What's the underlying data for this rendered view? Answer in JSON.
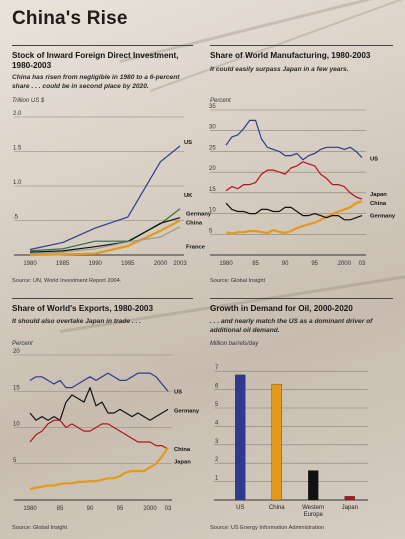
{
  "page_title": "China's Rise",
  "colors": {
    "us": "#2f3a8f",
    "japan": "#b3141d",
    "china": "#e39a1c",
    "germany": "#111111",
    "uk": "#2c6b3c",
    "france": "#9a9a9a"
  },
  "chart_data": [
    {
      "type": "line",
      "title": "Stock of Inward Foreign Direct Investment, 1980-2003",
      "subtitle": "China has risen from negligible in 1980 to a 6-percent share . . . could be in second place by 2020.",
      "unit": "Trillion US $",
      "source": "Source: UN, World Investment Report 2004.",
      "x": [
        1980,
        1985,
        1990,
        1995,
        2000,
        2003
      ],
      "xticks": [
        "1980",
        "1985",
        "1990",
        "1995",
        "2000",
        "2003"
      ],
      "ylim": [
        0,
        2.0
      ],
      "yticks": [
        "2.0",
        "1.5",
        "1.0",
        ".5"
      ],
      "ytick_values": [
        2.0,
        1.5,
        1.0,
        0.5
      ],
      "series": [
        {
          "name": "US",
          "color_key": "us",
          "values": [
            0.08,
            0.18,
            0.39,
            0.55,
            1.35,
            1.58
          ]
        },
        {
          "name": "UK",
          "color_key": "uk",
          "values": [
            0.06,
            0.09,
            0.2,
            0.2,
            0.45,
            0.67
          ]
        },
        {
          "name": "Germany",
          "color_key": "germany",
          "values": [
            0.04,
            0.06,
            0.12,
            0.19,
            0.46,
            0.54
          ]
        },
        {
          "name": "China",
          "color_key": "china",
          "values": [
            0.0,
            0.01,
            0.02,
            0.13,
            0.35,
            0.5
          ]
        },
        {
          "name": "France",
          "color_key": "france",
          "values": [
            0.02,
            0.04,
            0.09,
            0.19,
            0.26,
            0.41
          ]
        }
      ]
    },
    {
      "type": "line",
      "title": "Share of World Manufacturing, 1980-2003",
      "subtitle": "It could easily surpass Japan in a few years.",
      "unit": "Percent",
      "source": "Source: Global Insight",
      "x": [
        1980,
        1981,
        1982,
        1983,
        1984,
        1985,
        1986,
        1987,
        1988,
        1989,
        1990,
        1991,
        1992,
        1993,
        1994,
        1995,
        1996,
        1997,
        1998,
        1999,
        2000,
        2001,
        2002,
        2003
      ],
      "xticks": [
        "1980",
        "85",
        "90",
        "95",
        "2000",
        "03"
      ],
      "xtick_values": [
        1980,
        1985,
        1990,
        1995,
        2000,
        2003
      ],
      "ylim": [
        0,
        35
      ],
      "yticks": [
        "35",
        "30",
        "25",
        "20",
        "15",
        "10",
        "5"
      ],
      "ytick_values": [
        35,
        30,
        25,
        20,
        15,
        10,
        5
      ],
      "series": [
        {
          "name": "US",
          "color_key": "us",
          "values": [
            26.5,
            28.5,
            29,
            30.5,
            32.5,
            32.5,
            28,
            26,
            25.5,
            25,
            24,
            24,
            24.5,
            23,
            24,
            24.5,
            25.5,
            26,
            26,
            26,
            25.5,
            26,
            25,
            23.5
          ]
        },
        {
          "name": "Japan",
          "color_key": "japan",
          "values": [
            15.5,
            16.5,
            16,
            17,
            17,
            17.5,
            19.5,
            20.5,
            20.5,
            20,
            19.5,
            21,
            21.5,
            22.5,
            22,
            21.5,
            19.5,
            18.5,
            17,
            17,
            16.5,
            15,
            14,
            13.5
          ]
        },
        {
          "name": "China",
          "color_key": "china",
          "values": [
            5.5,
            5.2,
            5.5,
            5.5,
            5.8,
            5.8,
            5.5,
            5.3,
            6,
            5.6,
            5.3,
            5.8,
            6.5,
            7,
            7.4,
            7.8,
            8.5,
            9.2,
            9.8,
            10.5,
            11,
            11.5,
            12.5,
            13
          ]
        },
        {
          "name": "Germany",
          "color_key": "germany",
          "values": [
            12.5,
            11,
            10.5,
            10.5,
            10,
            10,
            11,
            11,
            10.5,
            10.5,
            11.5,
            11.5,
            10.5,
            9.5,
            9.5,
            10,
            9.5,
            9,
            9.5,
            9.5,
            8.5,
            8.5,
            9,
            9.5
          ]
        }
      ]
    },
    {
      "type": "line",
      "title": "Share of World's Exports, 1980-2003",
      "subtitle": "It should also overtake Japan in trade . . .",
      "unit": "Percent",
      "source": "Source: Global Insight",
      "x": [
        1980,
        1981,
        1982,
        1983,
        1984,
        1985,
        1986,
        1987,
        1988,
        1989,
        1990,
        1991,
        1992,
        1993,
        1994,
        1995,
        1996,
        1997,
        1998,
        1999,
        2000,
        2001,
        2002,
        2003
      ],
      "xticks": [
        "1980",
        "85",
        "90",
        "95",
        "2000",
        "03"
      ],
      "xtick_values": [
        1980,
        1985,
        1990,
        1995,
        2000,
        2003
      ],
      "ylim": [
        0,
        20
      ],
      "yticks": [
        "20",
        "15",
        "10",
        "5"
      ],
      "ytick_values": [
        20,
        15,
        10,
        5
      ],
      "series": [
        {
          "name": "US",
          "color_key": "us",
          "values": [
            16.5,
            17,
            17,
            16.5,
            16,
            16.5,
            15.5,
            15.5,
            16,
            16.5,
            17,
            16.5,
            17,
            17.5,
            17,
            16.5,
            16.5,
            17,
            17.5,
            17.5,
            17.5,
            17,
            16,
            15
          ]
        },
        {
          "name": "Germany",
          "color_key": "germany",
          "values": [
            12,
            11,
            11.5,
            11,
            11.5,
            11,
            13.5,
            14.5,
            14,
            13.5,
            15.5,
            13,
            13.5,
            12,
            12,
            12.5,
            12,
            11.5,
            12,
            11.5,
            11,
            11.5,
            12,
            12.5
          ]
        },
        {
          "name": "Japan",
          "color_key": "japan",
          "values": [
            8,
            9,
            9.5,
            10.5,
            11,
            11,
            10,
            10.5,
            10,
            9.5,
            9.5,
            10,
            10.5,
            10.5,
            10,
            9.5,
            9,
            8.5,
            8,
            8,
            8,
            7.5,
            7.5,
            7
          ]
        },
        {
          "name": "China",
          "color_key": "china",
          "values": [
            1.5,
            1.7,
            1.8,
            2,
            2,
            2.2,
            2.3,
            2.3,
            2.5,
            2.5,
            2.6,
            2.6,
            2.8,
            3,
            3,
            3.3,
            3.8,
            4,
            4,
            4,
            4.5,
            5,
            6,
            7.2
          ]
        }
      ]
    },
    {
      "type": "bar",
      "title": "Growth in Demand for Oil, 2000-2020",
      "subtitle": ". . . and nearly match the US as a dominant driver of additional oil demand.",
      "unit": "Million barrels/day",
      "source": "Source: US Energy Information Administration",
      "categories": [
        "US",
        "China",
        "Western Europe",
        "Japan"
      ],
      "values": [
        6.8,
        6.3,
        1.6,
        0.2
      ],
      "bar_color_keys": [
        "us",
        "china",
        "germany",
        "japan"
      ],
      "ylim": [
        0,
        7.5
      ],
      "yticks": [
        "7",
        "6",
        "5",
        "4",
        "3",
        "2",
        "1"
      ],
      "ytick_values": [
        7,
        6,
        5,
        4,
        3,
        2,
        1
      ]
    }
  ]
}
